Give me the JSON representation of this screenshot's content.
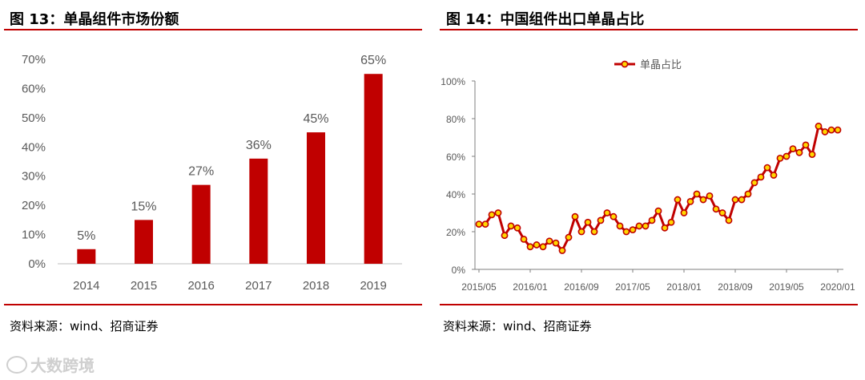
{
  "left": {
    "title": "图 13：单晶组件市场份额",
    "source": "资料来源：wind、招商证券"
  },
  "right": {
    "title": "图 14：中国组件出口单晶占比",
    "source": "资料来源：wind、招商证券"
  },
  "watermark": "大数跨境",
  "colors": {
    "accent": "#c00000",
    "marker_fill": "#ffd700",
    "axis": "#595959"
  },
  "chart_data": [
    {
      "type": "bar",
      "title": "单晶组件市场份额",
      "categories": [
        "2014",
        "2015",
        "2016",
        "2017",
        "2018",
        "2019"
      ],
      "values": [
        5,
        15,
        27,
        36,
        45,
        65
      ],
      "data_labels": [
        "5%",
        "15%",
        "27%",
        "36%",
        "45%",
        "65%"
      ],
      "ylim": [
        0,
        70
      ],
      "yticks": [
        0,
        10,
        20,
        30,
        40,
        50,
        60,
        70
      ],
      "ytick_labels": [
        "0%",
        "10%",
        "20%",
        "30%",
        "40%",
        "50%",
        "60%",
        "70%"
      ],
      "xlabel": "",
      "ylabel": "",
      "grid": false
    },
    {
      "type": "line",
      "title": "中国组件出口单晶占比",
      "series": [
        {
          "name": "单晶占比",
          "values": [
            24,
            24,
            29,
            30,
            18,
            23,
            22,
            16,
            12,
            13,
            12,
            15,
            14,
            10,
            17,
            28,
            20,
            25,
            20,
            26,
            30,
            28,
            23,
            20,
            21,
            23,
            23,
            26,
            31,
            22,
            25,
            37,
            30,
            36,
            40,
            37,
            39,
            32,
            30,
            26,
            37,
            37,
            40,
            46,
            49,
            54,
            50,
            59,
            60,
            64,
            62,
            66,
            61,
            76,
            73,
            74,
            74
          ]
        }
      ],
      "ylim": [
        0,
        100
      ],
      "yticks": [
        0,
        20,
        40,
        60,
        80,
        100
      ],
      "ytick_labels": [
        "0%",
        "20%",
        "40%",
        "60%",
        "80%",
        "100%"
      ],
      "xtick_labels": [
        "2015/05",
        "2016/01",
        "2016/09",
        "2017/05",
        "2018/01",
        "2018/09",
        "2019/05",
        "2020/01"
      ],
      "xtick_index": [
        0,
        8,
        16,
        24,
        32,
        40,
        48,
        56
      ],
      "legend": "单晶占比",
      "legend_position": "top-center",
      "xlabel": "",
      "ylabel": "",
      "grid": false
    }
  ]
}
